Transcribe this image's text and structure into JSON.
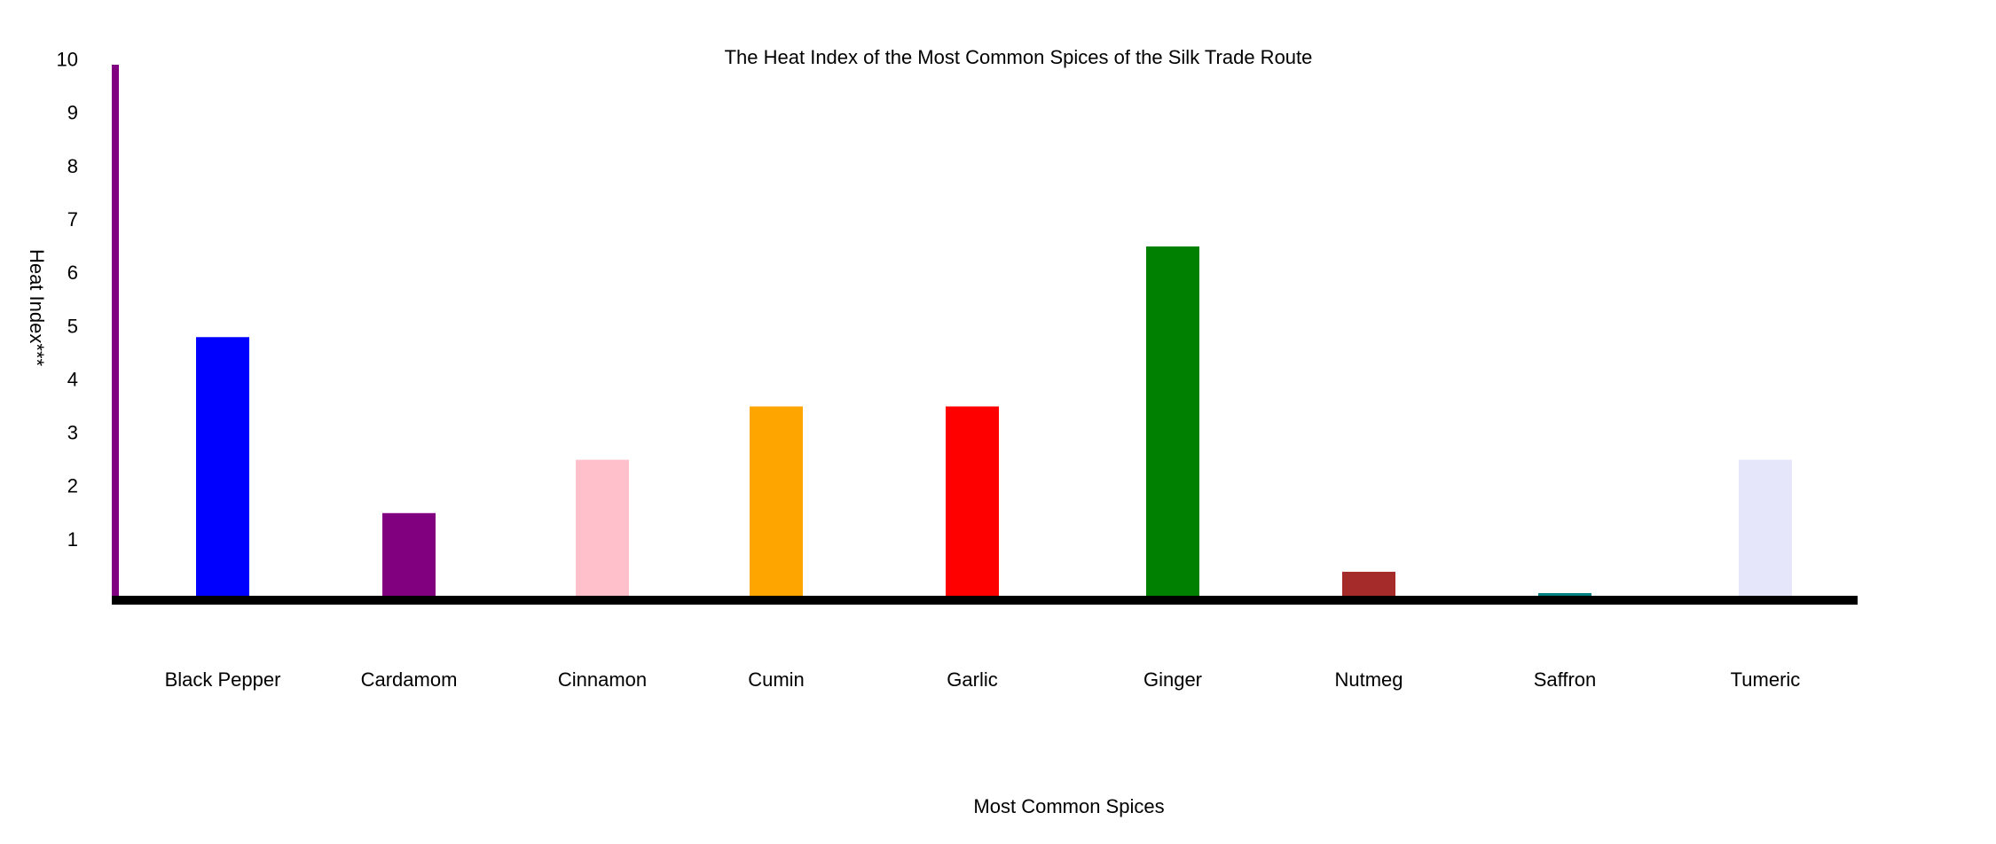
{
  "chart_data": {
    "type": "bar",
    "title": "The Heat Index of the Most Common Spices of the Silk Trade Route",
    "xlabel": "Most Common Spices",
    "ylabel": "Heat Index***",
    "categories": [
      "Black Pepper",
      "Cardamom",
      "Cinnamon",
      "Cumin",
      "Garlic",
      "Ginger",
      "Nutmeg",
      "Saffron",
      "Tumeric"
    ],
    "values": [
      4.9,
      1.6,
      2.6,
      3.6,
      3.6,
      6.6,
      0.5,
      0.1,
      2.6
    ],
    "colors": [
      "#0000ff",
      "#800080",
      "#ffc0cb",
      "#ffa500",
      "#ff0000",
      "#008000",
      "#a52a2a",
      "#008080",
      "#e6e6fa"
    ],
    "yticks": [
      "1",
      "2",
      "3",
      "4",
      "5",
      "6",
      "7",
      "8",
      "9",
      "10"
    ],
    "ylim": [
      0,
      10
    ],
    "grid": false,
    "legend": "none",
    "y_axis_color": "#800080",
    "x_axis_color": "#000000"
  }
}
